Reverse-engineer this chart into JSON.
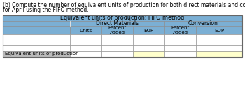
{
  "title_text_line1": "(b) Compute the number of equivalent units of production for both direct materials and conversion for the first production department",
  "title_text_line2": "for April using the FIFO method.",
  "table_title": "Equivalent units of production: FIFO method",
  "dm_label": "Direct Materials",
  "conv_label": "Conversion",
  "col2": "Units",
  "col3": "Percent\nAdded",
  "col4": "EUP",
  "col5": "Percent\nAdded",
  "col6": "EUP",
  "footer_label": "Equivalent units of production",
  "header_bg": "#7BAFD4",
  "cell_bg": "#FFFFFF",
  "footer_left_bg": "#BBBBBB",
  "highlight_bg": "#FFFFCC",
  "border_color": "#999999",
  "title_fontsize": 5.5,
  "header_fontsize": 5.5,
  "cell_fontsize": 5.2,
  "data_rows": 3,
  "fig_width": 3.5,
  "fig_height": 1.42,
  "dpi": 100
}
